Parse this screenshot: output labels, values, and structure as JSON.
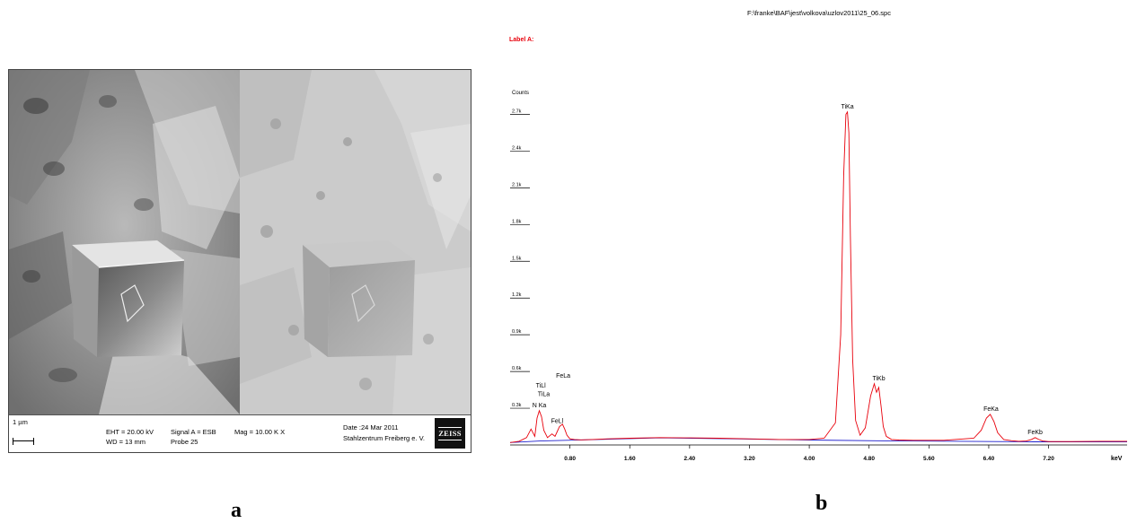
{
  "figure": {
    "panel_a_letter": "a",
    "panel_b_letter": "b"
  },
  "sem": {
    "scale_label": "1 µm",
    "eht": "EHT = 20.00 kV",
    "wd": "WD =  13 mm",
    "signal": "Signal A = ESB",
    "probe": "Probe 25",
    "mag": "Mag =  10.00 K X",
    "date": "Date :24 Mar 2011",
    "institute": "Stahlzentrum Freiberg e. V.",
    "logo_text": "ZEISS"
  },
  "chart_data": {
    "type": "line",
    "title": "F:\\franke\\BAF\\jest\\volkova\\uzlov2011\\25_06.spc",
    "subtitle": "Label A:",
    "ylabel": "Counts",
    "xlabel": "keV",
    "x_ticks": [
      "0.80",
      "1.60",
      "2.40",
      "3.20",
      "4.00",
      "4.80",
      "5.60",
      "6.40",
      "7.20"
    ],
    "x_tick_values": [
      0.8,
      1.6,
      2.4,
      3.2,
      4.0,
      4.8,
      5.6,
      6.4,
      7.2
    ],
    "y_ticks": [
      "0.3k",
      "0.6k",
      "0.9k",
      "1.2k",
      "1.5k",
      "1.8k",
      "2.1k",
      "2.4k",
      "2.7k"
    ],
    "y_tick_values": [
      300,
      600,
      900,
      1200,
      1500,
      1800,
      2100,
      2400,
      2700
    ],
    "xlim": [
      0.0,
      8.25
    ],
    "ylim": [
      0,
      2960
    ],
    "colors": {
      "spectrum": "#e8000b",
      "background": "#1f1fcc",
      "title": "#000000",
      "label": "#e8000b",
      "grid": "#000000"
    },
    "series": [
      {
        "color": "#e8000b",
        "x": [
          0.0,
          0.12,
          0.22,
          0.28,
          0.33,
          0.36,
          0.39,
          0.42,
          0.45,
          0.5,
          0.56,
          0.6,
          0.63,
          0.66,
          0.7,
          0.73,
          0.76,
          0.8,
          0.86,
          0.95,
          1.1,
          1.3,
          1.6,
          2.0,
          2.4,
          2.8,
          3.2,
          3.6,
          4.0,
          4.2,
          4.35,
          4.42,
          4.46,
          4.49,
          4.51,
          4.53,
          4.55,
          4.58,
          4.62,
          4.68,
          4.75,
          4.82,
          4.87,
          4.9,
          4.93,
          4.96,
          4.99,
          5.03,
          5.1,
          5.2,
          5.4,
          5.8,
          6.2,
          6.3,
          6.37,
          6.42,
          6.47,
          6.52,
          6.6,
          6.7,
          6.8,
          6.9,
          6.97,
          7.02,
          7.07,
          7.12,
          7.2,
          7.5,
          7.9,
          8.25
        ],
        "y": [
          20,
          30,
          60,
          130,
          70,
          220,
          280,
          230,
          120,
          60,
          90,
          70,
          110,
          150,
          170,
          130,
          80,
          50,
          45,
          42,
          45,
          50,
          55,
          60,
          58,
          55,
          50,
          45,
          45,
          55,
          180,
          900,
          2200,
          2700,
          2720,
          2550,
          1700,
          700,
          200,
          80,
          140,
          400,
          500,
          430,
          470,
          320,
          150,
          70,
          45,
          40,
          38,
          38,
          55,
          120,
          220,
          250,
          190,
          100,
          45,
          35,
          30,
          32,
          45,
          60,
          45,
          32,
          28,
          28,
          30,
          30
        ]
      },
      {
        "color": "#1f1fcc",
        "x": [
          0.0,
          0.4,
          1.0,
          2.0,
          3.0,
          4.0,
          5.0,
          6.0,
          7.0,
          8.25
        ],
        "y": [
          20,
          32,
          42,
          58,
          50,
          40,
          34,
          30,
          26,
          25
        ]
      }
    ],
    "peak_labels": [
      {
        "text": "TiKa",
        "x": 4.51,
        "y": 2720
      },
      {
        "text": "TiKb",
        "x": 4.93,
        "y": 500
      },
      {
        "text": "FeKa",
        "x": 6.43,
        "y": 250
      },
      {
        "text": "FeKb",
        "x": 7.02,
        "y": 60
      },
      {
        "text": "N Ka",
        "x": 0.39,
        "y": 280
      },
      {
        "text": "TiLa",
        "x": 0.45,
        "y": 370
      },
      {
        "text": "TiLl",
        "x": 0.41,
        "y": 440
      },
      {
        "text": "FeLa",
        "x": 0.71,
        "y": 520
      },
      {
        "text": "FeLl",
        "x": 0.63,
        "y": 150
      }
    ]
  }
}
